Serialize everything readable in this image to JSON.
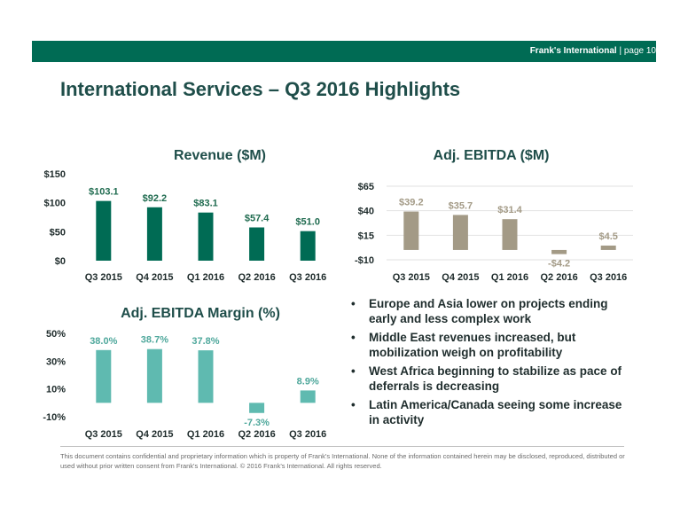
{
  "header": {
    "brand": "Frank's International",
    "separator": "|",
    "page": "page 10"
  },
  "title": "International Services – Q3 2016 Highlights",
  "colors": {
    "header_bg": "#006b54",
    "revenue_bar": "#006b54",
    "ebitda_bar": "#a39a86",
    "margin_bar": "#5fbab0",
    "revenue_label": "#1f6b4f",
    "ebitda_label": "#a39a86",
    "margin_label": "#4fa89c"
  },
  "chart_data": [
    {
      "type": "bar",
      "title": "Revenue ($M)",
      "categories": [
        "Q3 2015",
        "Q4 2015",
        "Q1 2016",
        "Q2 2016",
        "Q3 2016"
      ],
      "values": [
        103.1,
        92.2,
        83.1,
        57.4,
        51.0
      ],
      "labels": [
        "$103.1",
        "$92.2",
        "$83.1",
        "$57.4",
        "$51.0"
      ],
      "y_ticks": [
        0,
        50,
        100,
        150
      ],
      "y_tick_labels": [
        "$0",
        "$50",
        "$100",
        "$150"
      ],
      "ylim": [
        0,
        150
      ],
      "grid": false
    },
    {
      "type": "bar",
      "title": "Adj. EBITDA ($M)",
      "categories": [
        "Q3 2015",
        "Q4 2015",
        "Q1 2016",
        "Q2 2016",
        "Q3 2016"
      ],
      "values": [
        39.2,
        35.7,
        31.4,
        -4.2,
        4.5
      ],
      "labels": [
        "$39.2",
        "$35.7",
        "$31.4",
        "-$4.2",
        "$4.5"
      ],
      "y_ticks": [
        -10,
        15,
        40,
        65
      ],
      "y_tick_labels": [
        "-$10",
        "$15",
        "$40",
        "$65"
      ],
      "ylim": [
        -10,
        65
      ],
      "grid": true
    },
    {
      "type": "bar",
      "title": "Adj. EBITDA Margin (%)",
      "categories": [
        "Q3 2015",
        "Q4 2015",
        "Q1 2016",
        "Q2 2016",
        "Q3 2016"
      ],
      "values": [
        38.0,
        38.7,
        37.8,
        -7.3,
        8.9
      ],
      "labels": [
        "38.0%",
        "38.7%",
        "37.8%",
        "-7.3%",
        "8.9%"
      ],
      "y_ticks": [
        -10,
        10,
        30,
        50
      ],
      "y_tick_labels": [
        "-10%",
        "10%",
        "30%",
        "50%"
      ],
      "ylim": [
        -10,
        50
      ],
      "grid": false
    }
  ],
  "bullets": [
    "Europe and Asia lower on projects ending early and less complex work",
    "Middle East revenues increased, but mobilization weigh on profitability",
    "West Africa beginning to stabilize as pace of deferrals is decreasing",
    "Latin America/Canada seeing some increase in activity"
  ],
  "bullet_symbol": "•",
  "disclaimer": "This document contains confidential and proprietary information which is property of Frank's International. None of the information contained herein may be disclosed, reproduced, distributed or used without prior written consent from Frank's International. © 2016 Frank's International. All rights reserved."
}
